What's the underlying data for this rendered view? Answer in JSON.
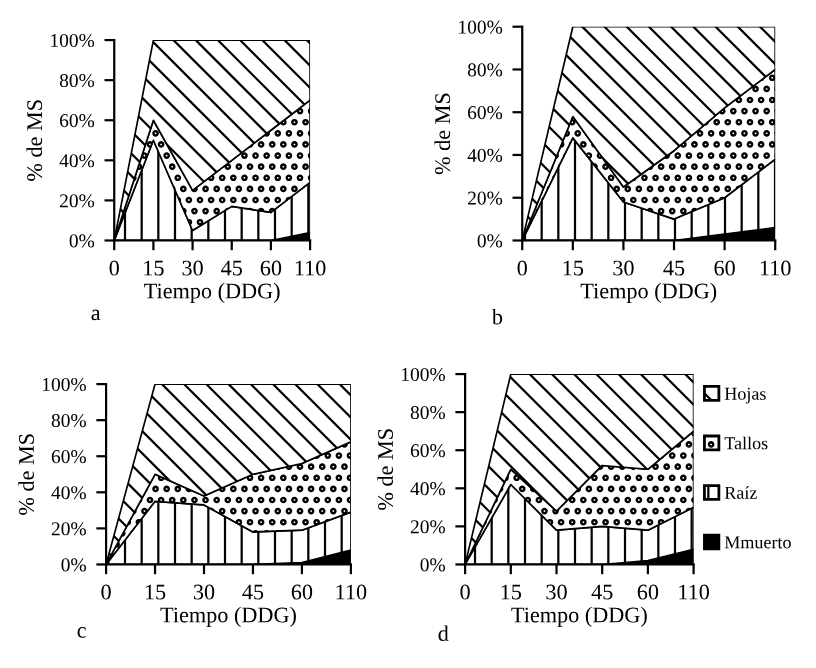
{
  "chart_data": [
    {
      "type": "area",
      "stacked": true,
      "xlabel": "Tiempo (DDG)",
      "ylabel": "% de MS",
      "categories": [
        "0",
        "15",
        "30",
        "45",
        "60",
        "110"
      ],
      "ylim": [
        0,
        100
      ],
      "yticks": [
        {
          "value": 0,
          "label": "0%"
        },
        {
          "value": 20,
          "label": "20%"
        },
        {
          "value": 40,
          "label": "40%"
        },
        {
          "value": 60,
          "label": "60%"
        },
        {
          "value": 80,
          "label": "80%"
        },
        {
          "value": 100,
          "label": "100%"
        }
      ],
      "annotations": [
        "a"
      ],
      "legend": false,
      "series": [
        {
          "color": "#000000",
          "values": [
            0,
            0,
            0,
            0,
            0,
            4
          ]
        },
        {
          "color": "#000000",
          "values": [
            0,
            50,
            5,
            17,
            14,
            25
          ]
        },
        {
          "color": "#000000",
          "values": [
            0,
            10,
            20,
            23,
            41,
            41
          ]
        },
        {
          "color": "#000000",
          "values": [
            0,
            40,
            75,
            60,
            45,
            30
          ]
        }
      ]
    },
    {
      "type": "area",
      "stacked": true,
      "xlabel": "Tiempo (DDG)",
      "ylabel": "% de MS",
      "categories": [
        "0",
        "15",
        "30",
        "45",
        "60",
        "110"
      ],
      "ylim": [
        0,
        100
      ],
      "yticks": [
        {
          "value": 0,
          "label": "0%"
        },
        {
          "value": 20,
          "label": "20%"
        },
        {
          "value": 40,
          "label": "40%"
        },
        {
          "value": 60,
          "label": "60%"
        },
        {
          "value": 80,
          "label": "80%"
        },
        {
          "value": 100,
          "label": "100%"
        }
      ],
      "annotations": [
        "b"
      ],
      "legend": false,
      "series": [
        {
          "color": "#000000",
          "values": [
            0,
            0,
            0,
            0,
            3,
            6
          ]
        },
        {
          "color": "#000000",
          "values": [
            0,
            48,
            18,
            10,
            17,
            32
          ]
        },
        {
          "color": "#000000",
          "values": [
            0,
            10,
            7,
            32,
            42,
            42
          ]
        },
        {
          "color": "#000000",
          "values": [
            0,
            42,
            75,
            58,
            38,
            20
          ]
        }
      ]
    },
    {
      "type": "area",
      "stacked": true,
      "xlabel": "Tiempo (DDG)",
      "ylabel": "% de MS",
      "categories": [
        "0",
        "15",
        "30",
        "45",
        "60",
        "110"
      ],
      "ylim": [
        0,
        100
      ],
      "yticks": [
        {
          "value": 0,
          "label": "0%"
        },
        {
          "value": 20,
          "label": "20%"
        },
        {
          "value": 40,
          "label": "40%"
        },
        {
          "value": 60,
          "label": "60%"
        },
        {
          "value": 80,
          "label": "80%"
        },
        {
          "value": 100,
          "label": "100%"
        }
      ],
      "annotations": [
        "c"
      ],
      "legend": false,
      "series": [
        {
          "color": "#000000",
          "values": [
            0,
            0,
            0,
            0,
            1,
            8
          ]
        },
        {
          "color": "#000000",
          "values": [
            0,
            35,
            33,
            18,
            18,
            21
          ]
        },
        {
          "color": "#000000",
          "values": [
            0,
            15,
            5,
            32,
            37,
            39
          ]
        },
        {
          "color": "#000000",
          "values": [
            0,
            50,
            62,
            50,
            44,
            32
          ]
        }
      ]
    },
    {
      "type": "area",
      "stacked": true,
      "xlabel": "Tiempo (DDG)",
      "ylabel": "% de MS",
      "categories": [
        "0",
        "15",
        "30",
        "45",
        "60",
        "110"
      ],
      "ylim": [
        0,
        100
      ],
      "yticks": [
        {
          "value": 0,
          "label": "0%"
        },
        {
          "value": 20,
          "label": "20%"
        },
        {
          "value": 40,
          "label": "40%"
        },
        {
          "value": 60,
          "label": "60%"
        },
        {
          "value": 80,
          "label": "80%"
        },
        {
          "value": 100,
          "label": "100%"
        }
      ],
      "annotations": [
        "d"
      ],
      "legend": "right",
      "series": [
        {
          "name": "Mmuerto",
          "color": "#000000",
          "values": [
            0,
            0,
            0,
            0,
            2,
            8
          ]
        },
        {
          "name": "Raíz",
          "color": "#000000",
          "values": [
            0,
            42,
            18,
            20,
            16,
            22
          ]
        },
        {
          "name": "Tallos",
          "color": "#000000",
          "values": [
            0,
            8,
            10,
            32,
            32,
            40
          ]
        },
        {
          "name": "Hojas",
          "color": "#000000",
          "values": [
            0,
            50,
            72,
            48,
            50,
            30
          ]
        }
      ]
    }
  ]
}
